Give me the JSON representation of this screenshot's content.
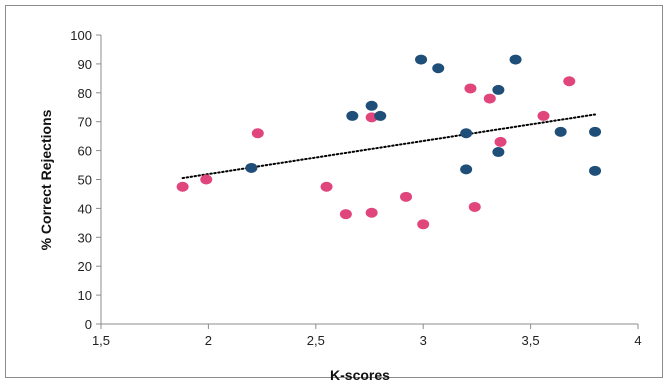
{
  "chart_data": {
    "type": "scatter",
    "title": "",
    "xlabel": "K-scores",
    "ylabel": "% Correct Rejections",
    "xlim": [
      1.5,
      4
    ],
    "ylim": [
      0,
      100
    ],
    "x_ticks": [
      "1,5",
      "2",
      "2,5",
      "3",
      "3,5",
      "4"
    ],
    "y_ticks": [
      "0",
      "10",
      "20",
      "30",
      "40",
      "50",
      "60",
      "70",
      "80",
      "90",
      "100"
    ],
    "grid": false,
    "legend": "none",
    "colors": {
      "pink": "#e0457b",
      "navy": "#1f4e79",
      "trend": "#000000"
    },
    "series": [
      {
        "color": "pink",
        "points": [
          [
            1.88,
            47.5
          ],
          [
            1.99,
            50
          ],
          [
            2.23,
            66
          ],
          [
            2.55,
            47.5
          ],
          [
            2.64,
            38
          ],
          [
            2.76,
            38.5
          ],
          [
            2.76,
            71.5
          ],
          [
            2.92,
            44
          ],
          [
            3.0,
            34.5
          ],
          [
            3.22,
            81.5
          ],
          [
            3.24,
            40.5
          ],
          [
            3.31,
            78
          ],
          [
            3.36,
            63
          ],
          [
            3.56,
            72
          ],
          [
            3.68,
            84
          ]
        ]
      },
      {
        "color": "navy",
        "points": [
          [
            2.2,
            54
          ],
          [
            2.67,
            72
          ],
          [
            2.76,
            75.5
          ],
          [
            2.8,
            72
          ],
          [
            2.99,
            91.5
          ],
          [
            3.07,
            88.5
          ],
          [
            3.2,
            66
          ],
          [
            3.2,
            53.5
          ],
          [
            3.35,
            81
          ],
          [
            3.35,
            59.5
          ],
          [
            3.43,
            91.5
          ],
          [
            3.64,
            66.5
          ],
          [
            3.8,
            66.5
          ],
          [
            3.8,
            53
          ]
        ]
      }
    ],
    "trendline": {
      "style": "dotted",
      "x": [
        1.88,
        3.8
      ],
      "y": [
        50.5,
        72.5
      ]
    }
  }
}
